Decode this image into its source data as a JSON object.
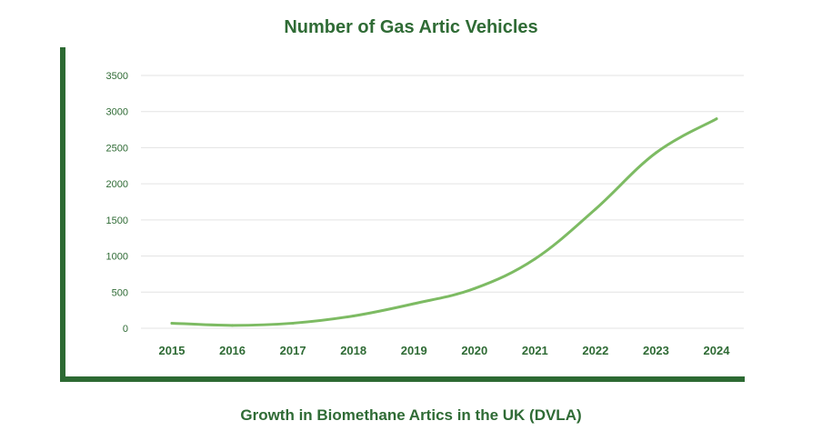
{
  "chart_data": {
    "type": "line",
    "title": "Number of Gas Artic Vehicles",
    "caption": "Growth in Biomethane Artics in the UK (DVLA)",
    "xlabel": "",
    "ylabel": "",
    "categories": [
      "2015",
      "2016",
      "2017",
      "2018",
      "2019",
      "2020",
      "2021",
      "2022",
      "2023",
      "2024"
    ],
    "series": [
      {
        "name": "Gas Artic Vehicles",
        "values": [
          70,
          40,
          70,
          170,
          340,
          550,
          960,
          1650,
          2430,
          2900
        ]
      }
    ],
    "ylim": [
      0,
      3500
    ],
    "yticks": [
      "0",
      "500",
      "1000",
      "1500",
      "2000",
      "2500",
      "3000",
      "3500"
    ],
    "grid": true,
    "legend": "none",
    "colors": {
      "line": "#7dbb63",
      "text": "#2f6b35",
      "axis": "#2d6a33",
      "grid": "#e3e3e3"
    }
  }
}
